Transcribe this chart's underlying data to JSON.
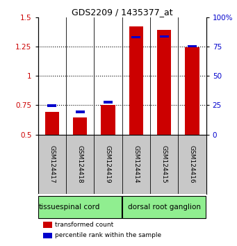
{
  "title": "GDS2209 / 1435377_at",
  "samples": [
    "GSM124417",
    "GSM124418",
    "GSM124419",
    "GSM124414",
    "GSM124415",
    "GSM124416"
  ],
  "red_values": [
    0.69,
    0.645,
    0.75,
    1.42,
    1.39,
    1.245
  ],
  "blue_values": [
    0.748,
    0.693,
    0.775,
    1.33,
    1.335,
    1.252
  ],
  "ylim": [
    0.5,
    1.5
  ],
  "yticks_left": [
    0.5,
    0.75,
    1.0,
    1.25,
    1.5
  ],
  "yticks_right": [
    0,
    25,
    50,
    75,
    100
  ],
  "ytick_labels_left": [
    "0.5",
    "0.75",
    "1",
    "1.25",
    "1.5"
  ],
  "ytick_labels_right": [
    "0",
    "25",
    "50",
    "75",
    "100%"
  ],
  "tissue_label": "tissue",
  "legend_red": "transformed count",
  "legend_blue": "percentile rank within the sample",
  "red_color": "#cc0000",
  "blue_color": "#0000cc",
  "bar_width": 0.5,
  "background_color": "#ffffff",
  "plot_bg": "#ffffff",
  "sample_bg": "#c8c8c8",
  "tissue_green": "#90ee90"
}
